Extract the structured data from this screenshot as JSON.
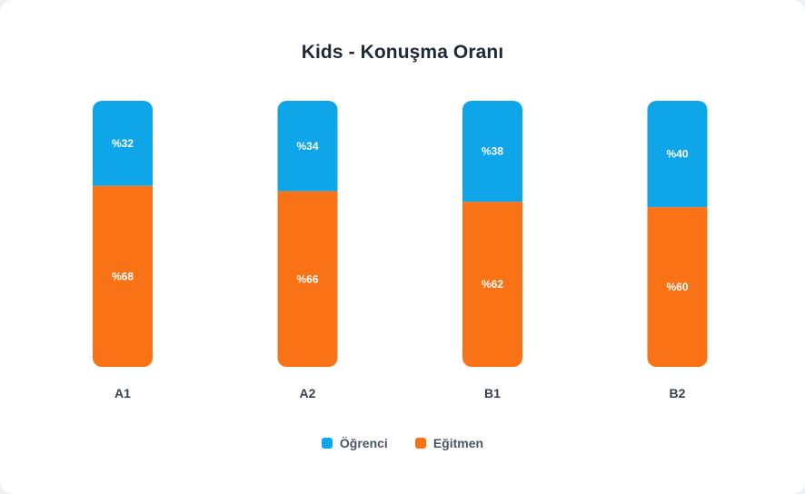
{
  "chart_data": {
    "type": "bar",
    "stacked": true,
    "title": "Kids - Konuşma Oranı",
    "categories": [
      "A1",
      "A2",
      "B1",
      "B2"
    ],
    "series": [
      {
        "name": "Öğrenci",
        "values": [
          32,
          34,
          38,
          40
        ],
        "color": "#0ea5e9"
      },
      {
        "name": "Eğitmen",
        "values": [
          68,
          66,
          62,
          60
        ],
        "color": "#f97316"
      }
    ],
    "value_prefix": "%",
    "ylim": [
      0,
      100
    ],
    "grid": false,
    "legend_position": "bottom"
  }
}
